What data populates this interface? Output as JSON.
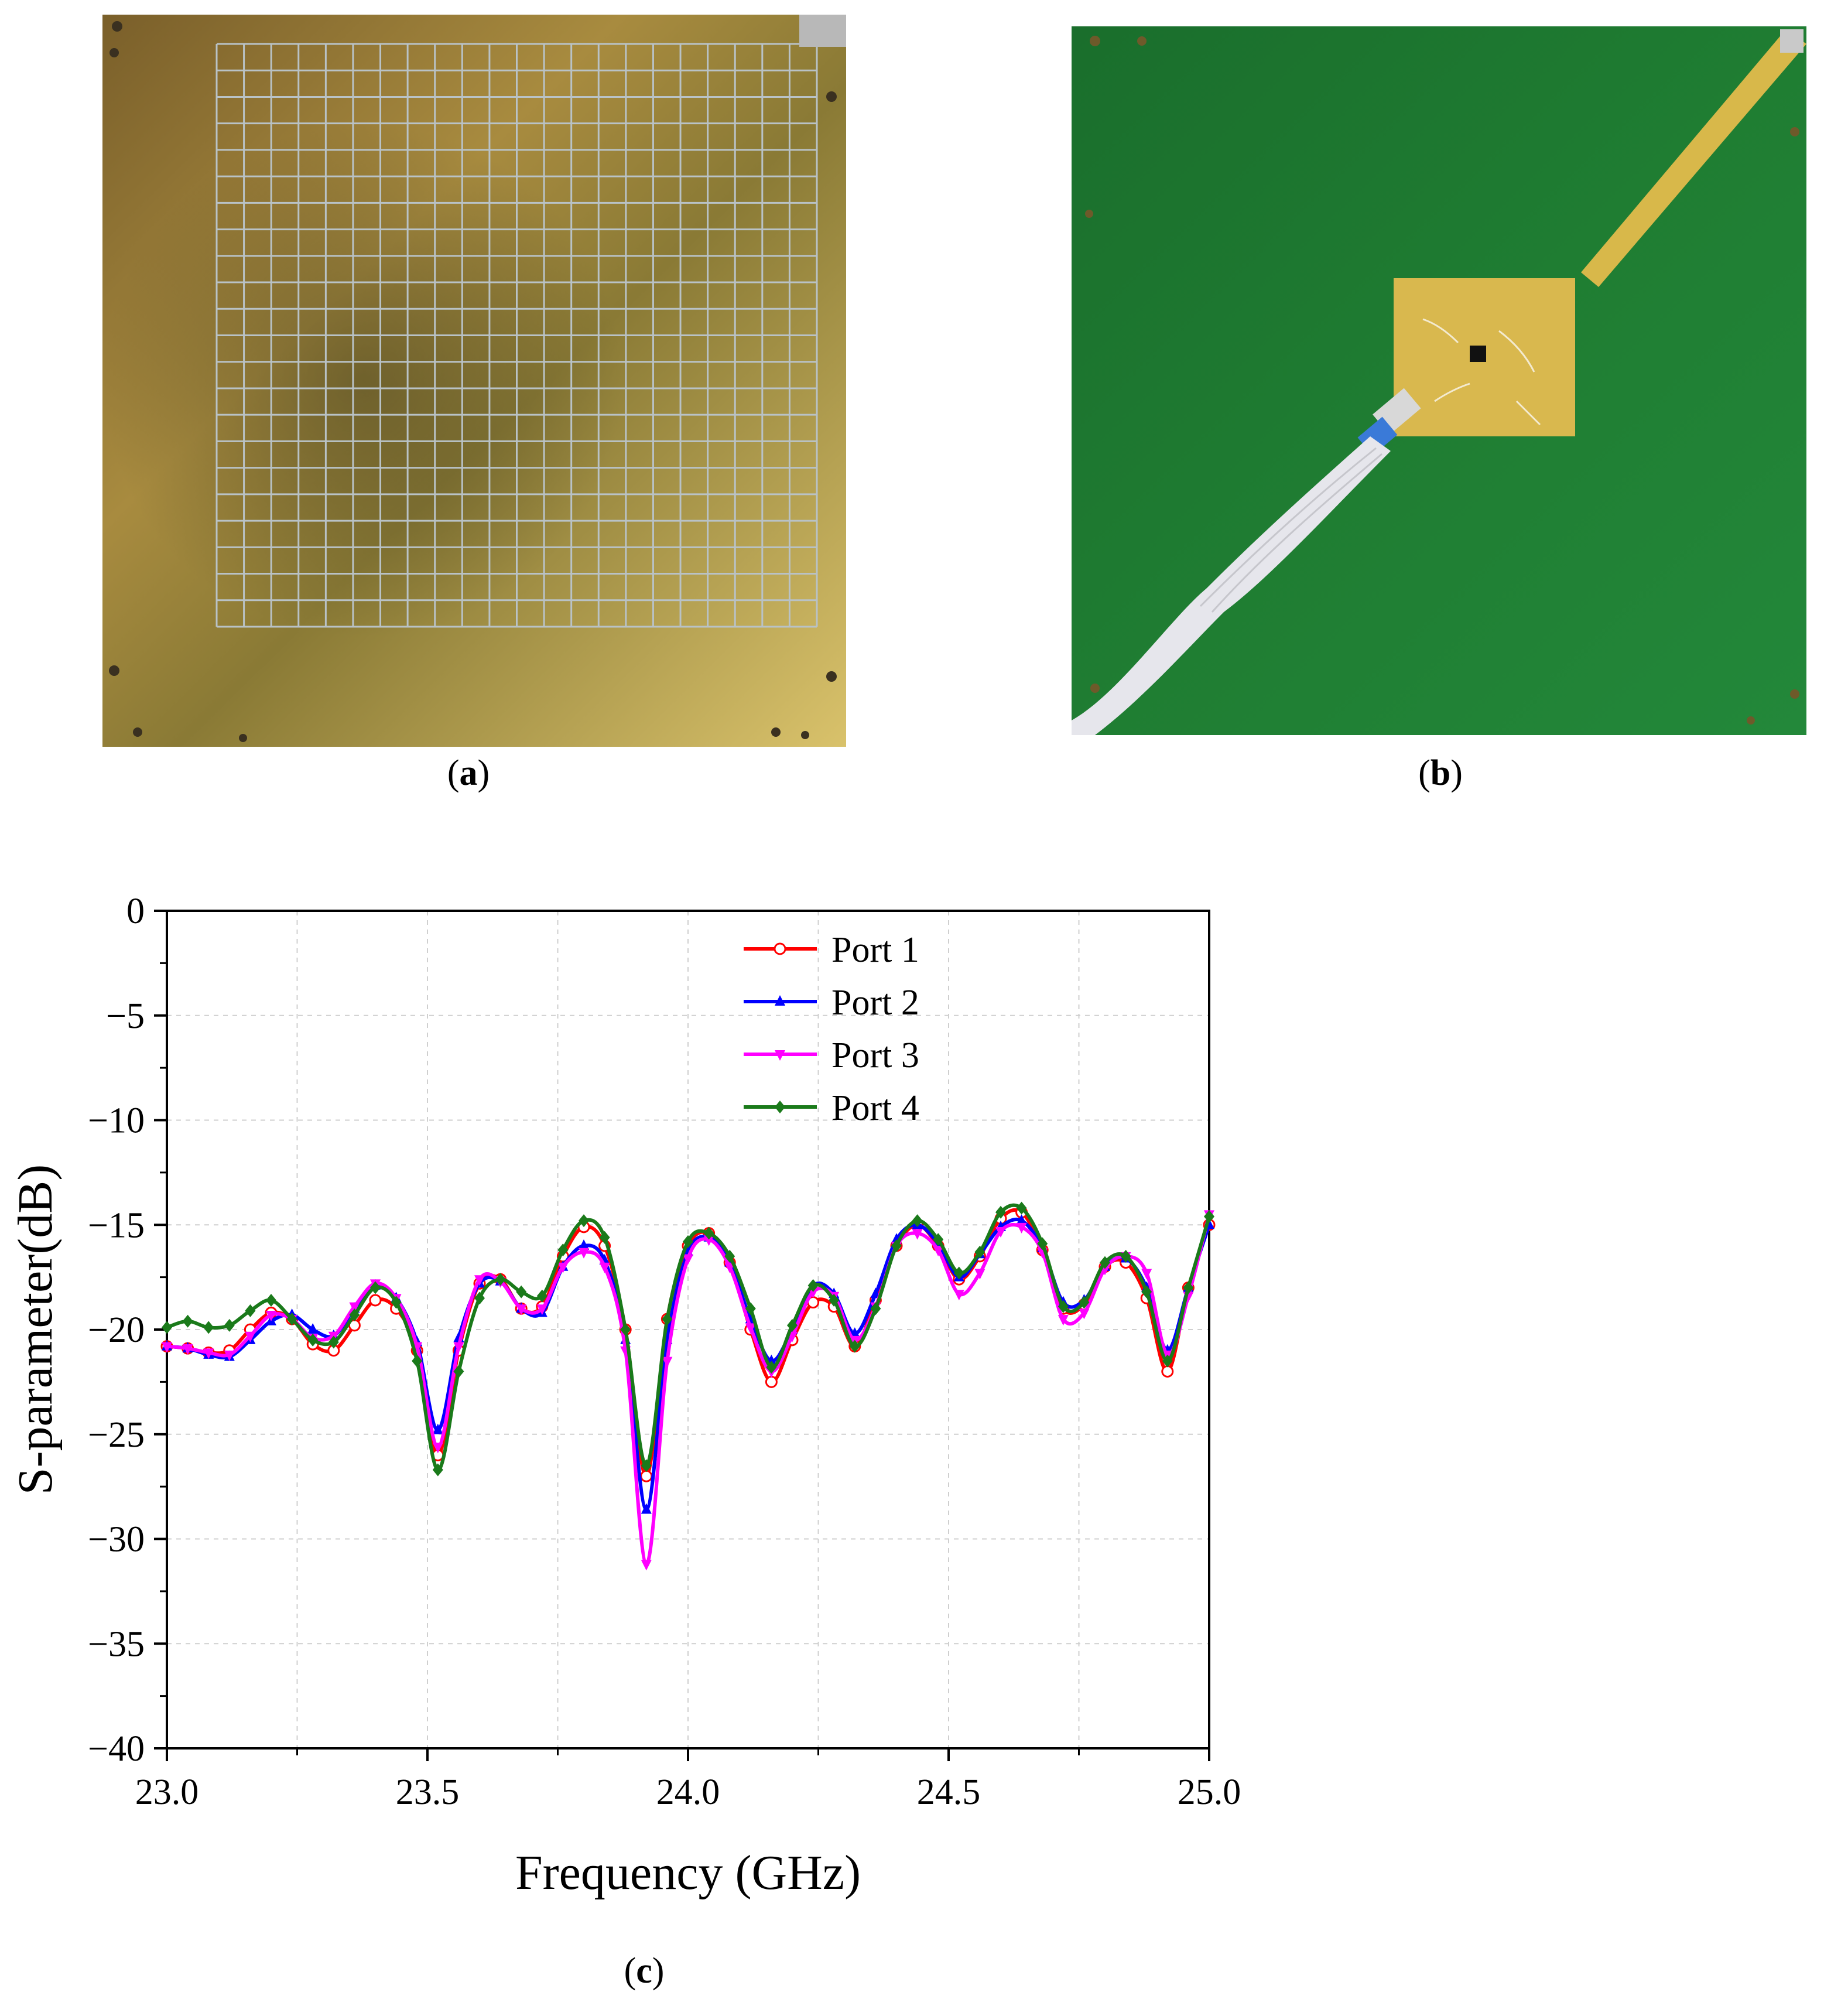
{
  "panels": {
    "a": {
      "caption_open": "(",
      "caption_letter": "a",
      "caption_close": ")",
      "description_icon": "gold-grid-metasurface-photo"
    },
    "b": {
      "caption_open": "(",
      "caption_letter": "b",
      "caption_close": ")",
      "description_icon": "green-pcb-antenna-photo"
    },
    "c": {
      "caption_open": "(",
      "caption_letter": "c",
      "caption_close": ")"
    }
  },
  "colors": {
    "port1": "#ff0000",
    "port2": "#0000ff",
    "port3": "#ff00ff",
    "port4": "#1a7a1a",
    "gold": "#b89a3e",
    "green": "#1f7d32"
  },
  "chart_data": {
    "type": "line",
    "title": "",
    "xlabel": "Frequency (GHz)",
    "ylabel": "S-parameter(dB)",
    "xlim": [
      23.0,
      25.0
    ],
    "ylim": [
      -40,
      0
    ],
    "xticks": [
      23.0,
      23.5,
      24.0,
      24.5,
      25.0
    ],
    "xtick_labels": [
      "23.0",
      "23.5",
      "24.0",
      "24.5",
      "25.0"
    ],
    "yticks": [
      0,
      -5,
      -10,
      -15,
      -20,
      -25,
      -30,
      -35,
      -40
    ],
    "ytick_labels": [
      "0",
      "−5",
      "−10",
      "−15",
      "−20",
      "−25",
      "−30",
      "−35",
      "−40"
    ],
    "grid": true,
    "legend_position": "top-right",
    "x": [
      23.0,
      23.04,
      23.08,
      23.12,
      23.16,
      23.2,
      23.24,
      23.28,
      23.32,
      23.36,
      23.4,
      23.44,
      23.48,
      23.52,
      23.56,
      23.6,
      23.64,
      23.68,
      23.72,
      23.76,
      23.8,
      23.84,
      23.88,
      23.92,
      23.96,
      24.0,
      24.04,
      24.08,
      24.12,
      24.16,
      24.2,
      24.24,
      24.28,
      24.32,
      24.36,
      24.4,
      24.44,
      24.48,
      24.52,
      24.56,
      24.6,
      24.64,
      24.68,
      24.72,
      24.76,
      24.8,
      24.84,
      24.88,
      24.92,
      24.96,
      25.0
    ],
    "series": [
      {
        "name": "Port 1",
        "marker": "circle-open",
        "values": [
          -20.8,
          -20.9,
          -21.1,
          -21.0,
          -20.0,
          -19.2,
          -19.5,
          -20.7,
          -21.0,
          -19.8,
          -18.6,
          -19.0,
          -21.0,
          -26.0,
          -21.0,
          -17.8,
          -17.6,
          -19.0,
          -18.9,
          -16.5,
          -15.1,
          -16.0,
          -20.0,
          -27.0,
          -19.5,
          -16.0,
          -15.4,
          -16.8,
          -20.0,
          -22.5,
          -20.5,
          -18.7,
          -18.9,
          -20.8,
          -18.6,
          -16.0,
          -15.0,
          -16.0,
          -17.6,
          -16.5,
          -14.7,
          -14.4,
          -16.2,
          -19.0,
          -18.8,
          -17.0,
          -16.8,
          -18.5,
          -22.0,
          -18.0,
          -15.0
        ]
      },
      {
        "name": "Port 2",
        "marker": "triangle-up",
        "values": [
          -20.8,
          -20.9,
          -21.2,
          -21.3,
          -20.5,
          -19.6,
          -19.3,
          -20.0,
          -20.3,
          -19.0,
          -17.9,
          -18.5,
          -20.6,
          -24.8,
          -20.4,
          -17.8,
          -17.7,
          -19.0,
          -19.2,
          -17.0,
          -16.0,
          -16.7,
          -20.5,
          -28.6,
          -20.5,
          -16.3,
          -15.6,
          -16.8,
          -19.5,
          -21.5,
          -20.0,
          -17.9,
          -18.3,
          -20.2,
          -18.3,
          -15.7,
          -15.0,
          -15.9,
          -17.5,
          -16.4,
          -15.1,
          -14.8,
          -16.1,
          -18.7,
          -18.6,
          -17.0,
          -16.6,
          -18.0,
          -21.0,
          -18.0,
          -15.0
        ]
      },
      {
        "name": "Port 3",
        "marker": "triangle-down",
        "values": [
          -20.8,
          -20.9,
          -21.1,
          -21.2,
          -20.3,
          -19.3,
          -19.5,
          -20.4,
          -20.3,
          -18.9,
          -17.8,
          -18.5,
          -20.8,
          -25.6,
          -20.8,
          -17.6,
          -17.7,
          -19.0,
          -19.0,
          -17.0,
          -16.3,
          -17.0,
          -21.0,
          -31.2,
          -21.5,
          -16.6,
          -15.7,
          -17.0,
          -19.9,
          -22.0,
          -20.3,
          -18.2,
          -18.4,
          -20.5,
          -18.9,
          -16.0,
          -15.4,
          -16.2,
          -18.3,
          -17.3,
          -15.3,
          -15.1,
          -16.3,
          -19.5,
          -19.2,
          -17.1,
          -16.5,
          -17.3,
          -21.2,
          -18.4,
          -14.5
        ]
      },
      {
        "name": "Port 4",
        "marker": "diamond",
        "values": [
          -19.9,
          -19.6,
          -19.9,
          -19.8,
          -19.1,
          -18.6,
          -19.5,
          -20.5,
          -20.6,
          -19.3,
          -18.0,
          -18.7,
          -21.5,
          -26.7,
          -22.0,
          -18.5,
          -17.6,
          -18.2,
          -18.4,
          -16.2,
          -14.8,
          -15.6,
          -20.0,
          -26.5,
          -19.5,
          -15.8,
          -15.4,
          -16.5,
          -19.0,
          -21.8,
          -19.8,
          -17.9,
          -18.6,
          -20.8,
          -19.0,
          -16.0,
          -14.8,
          -15.7,
          -17.3,
          -16.3,
          -14.4,
          -14.2,
          -15.9,
          -18.9,
          -18.7,
          -16.8,
          -16.5,
          -18.2,
          -21.5,
          -18.0,
          -14.6
        ]
      }
    ]
  }
}
